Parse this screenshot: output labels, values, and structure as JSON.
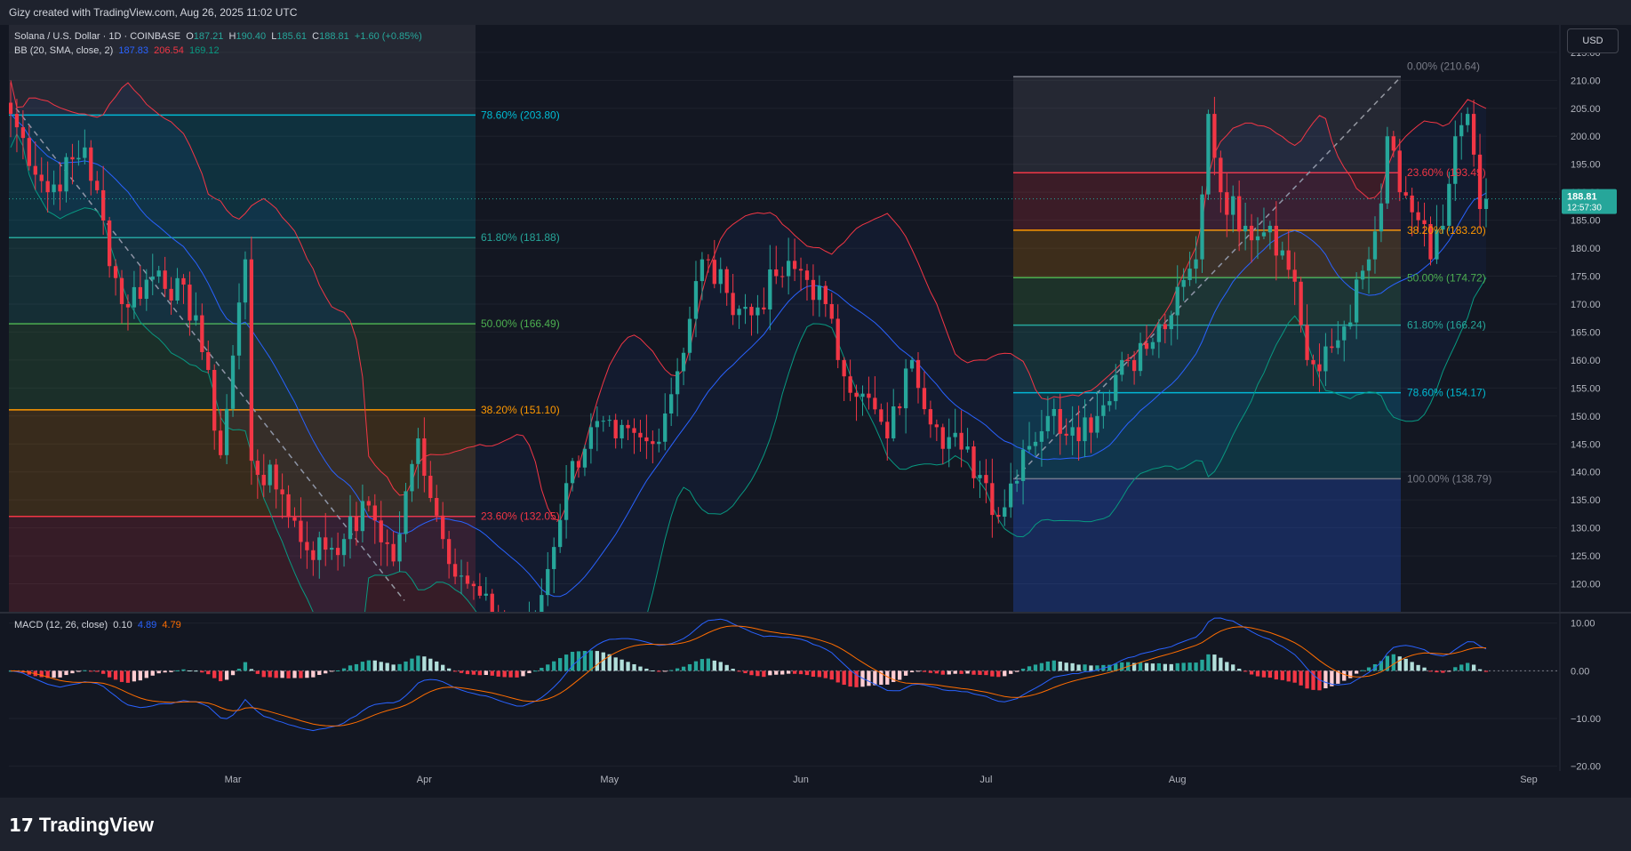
{
  "header": {
    "caption": "Gizy created with TradingView.com, Aug 26, 2025 11:02 UTC"
  },
  "symbol": {
    "title": "Solana / U.S. Dollar · 1D · COINBASE",
    "open_label": "O",
    "open": "187.21",
    "high_label": "H",
    "high": "190.40",
    "low_label": "L",
    "low": "185.61",
    "close_label": "C",
    "close": "188.81",
    "change": "+1.60 (+0.85%)"
  },
  "bb_legend": {
    "label": "BB (20, SMA, close, 2)",
    "basis": "187.83",
    "upper": "206.54",
    "lower": "169.12"
  },
  "macd_legend": {
    "label": "MACD (12, 26, close)",
    "hist": "0.10",
    "macd": "4.89",
    "signal": "4.79"
  },
  "currency_button": "USD",
  "last_price": {
    "value": "188.81",
    "countdown": "12:57:30"
  },
  "colors": {
    "up": "#26a69a",
    "down": "#f23645",
    "bb_upper": "#f23645",
    "bb_basis": "#2962ff",
    "bb_lower": "#089981",
    "macd": "#2962ff",
    "signal": "#ff6d00",
    "background": "#131722"
  },
  "brand": "TradingView",
  "chart_data": {
    "type": "candlestick",
    "title": "Solana / U.S. Dollar · 1D · COINBASE",
    "price_axis": {
      "ylim": [
        115,
        218
      ],
      "ticks": [
        "215.00",
        "210.00",
        "205.00",
        "200.00",
        "195.00",
        "190.00",
        "185.00",
        "180.00",
        "175.00",
        "170.00",
        "165.00",
        "160.00",
        "155.00",
        "150.00",
        "145.00",
        "140.00",
        "135.00",
        "130.00",
        "125.00",
        "120.00"
      ]
    },
    "macd_axis": {
      "ylim": [
        -21,
        12
      ],
      "ticks": [
        "10.00",
        "0.00",
        "−10.00",
        "−20.00"
      ]
    },
    "x_labels": [
      "Mar",
      "Apr",
      "May",
      "Jun",
      "Jul",
      "Aug",
      "Sep"
    ],
    "fib_left": {
      "levels": [
        {
          "label": "78.60% (203.80)",
          "value": 203.8,
          "color": "#00bcd4"
        },
        {
          "label": "61.80% (181.88)",
          "value": 181.88,
          "color": "#26a69a"
        },
        {
          "label": "50.00% (166.49)",
          "value": 166.49,
          "color": "#4caf50"
        },
        {
          "label": "38.20% (151.10)",
          "value": 151.1,
          "color": "#ff9800"
        },
        {
          "label": "23.60% (132.05)",
          "value": 132.05,
          "color": "#f23645"
        }
      ]
    },
    "fib_right": {
      "levels": [
        {
          "label": "0.00% (210.64)",
          "value": 210.64,
          "color": "#787b86"
        },
        {
          "label": "23.60% (193.49)",
          "value": 193.49,
          "color": "#f23645"
        },
        {
          "label": "38.20% (183.20)",
          "value": 183.2,
          "color": "#ff9800"
        },
        {
          "label": "50.00% (174.72)",
          "value": 174.72,
          "color": "#4caf50"
        },
        {
          "label": "61.80% (166.24)",
          "value": 166.24,
          "color": "#26a69a"
        },
        {
          "label": "78.60% (154.17)",
          "value": 154.17,
          "color": "#00bcd4"
        },
        {
          "label": "100.00% (138.79)",
          "value": 138.79,
          "color": "#787b86"
        }
      ]
    },
    "anchors": [
      {
        "d": 0,
        "c": 204
      },
      {
        "d": 6,
        "c": 190
      },
      {
        "d": 12,
        "c": 198
      },
      {
        "d": 18,
        "c": 170
      },
      {
        "d": 24,
        "c": 176
      },
      {
        "d": 30,
        "c": 168
      },
      {
        "d": 34,
        "c": 143
      },
      {
        "d": 38,
        "c": 178
      },
      {
        "d": 39,
        "c": 142
      },
      {
        "d": 44,
        "c": 136
      },
      {
        "d": 48,
        "c": 126
      },
      {
        "d": 54,
        "c": 128
      },
      {
        "d": 58,
        "c": 134
      },
      {
        "d": 62,
        "c": 124
      },
      {
        "d": 66,
        "c": 146
      },
      {
        "d": 70,
        "c": 128
      },
      {
        "d": 74,
        "c": 120
      },
      {
        "d": 78,
        "c": 114
      },
      {
        "d": 82,
        "c": 106
      },
      {
        "d": 86,
        "c": 118
      },
      {
        "d": 90,
        "c": 138
      },
      {
        "d": 94,
        "c": 148
      },
      {
        "d": 98,
        "c": 146
      },
      {
        "d": 104,
        "c": 145
      },
      {
        "d": 108,
        "c": 158
      },
      {
        "d": 112,
        "c": 178
      },
      {
        "d": 116,
        "c": 172
      },
      {
        "d": 120,
        "c": 168
      },
      {
        "d": 124,
        "c": 175
      },
      {
        "d": 128,
        "c": 176
      },
      {
        "d": 132,
        "c": 170
      },
      {
        "d": 134,
        "c": 160
      },
      {
        "d": 138,
        "c": 154
      },
      {
        "d": 142,
        "c": 146
      },
      {
        "d": 146,
        "c": 160
      },
      {
        "d": 150,
        "c": 148
      },
      {
        "d": 154,
        "c": 144
      },
      {
        "d": 158,
        "c": 138
      },
      {
        "d": 160,
        "c": 132
      },
      {
        "d": 164,
        "c": 144
      },
      {
        "d": 168,
        "c": 150
      },
      {
        "d": 172,
        "c": 148
      },
      {
        "d": 176,
        "c": 150
      },
      {
        "d": 180,
        "c": 160
      },
      {
        "d": 184,
        "c": 162
      },
      {
        "d": 188,
        "c": 168
      },
      {
        "d": 192,
        "c": 178
      },
      {
        "d": 194,
        "c": 204
      },
      {
        "d": 196,
        "c": 190
      },
      {
        "d": 200,
        "c": 184
      },
      {
        "d": 204,
        "c": 184
      },
      {
        "d": 208,
        "c": 174
      },
      {
        "d": 210,
        "c": 160
      },
      {
        "d": 212,
        "c": 158
      },
      {
        "d": 216,
        "c": 166
      },
      {
        "d": 220,
        "c": 178
      },
      {
        "d": 222,
        "c": 188
      },
      {
        "d": 223,
        "c": 200
      },
      {
        "d": 225,
        "c": 190
      },
      {
        "d": 228,
        "c": 185
      },
      {
        "d": 230,
        "c": 178
      },
      {
        "d": 232,
        "c": 184
      },
      {
        "d": 234,
        "c": 200
      },
      {
        "d": 236,
        "c": 204
      },
      {
        "d": 238,
        "c": 187
      },
      {
        "d": 239,
        "c": 188.81
      }
    ]
  }
}
